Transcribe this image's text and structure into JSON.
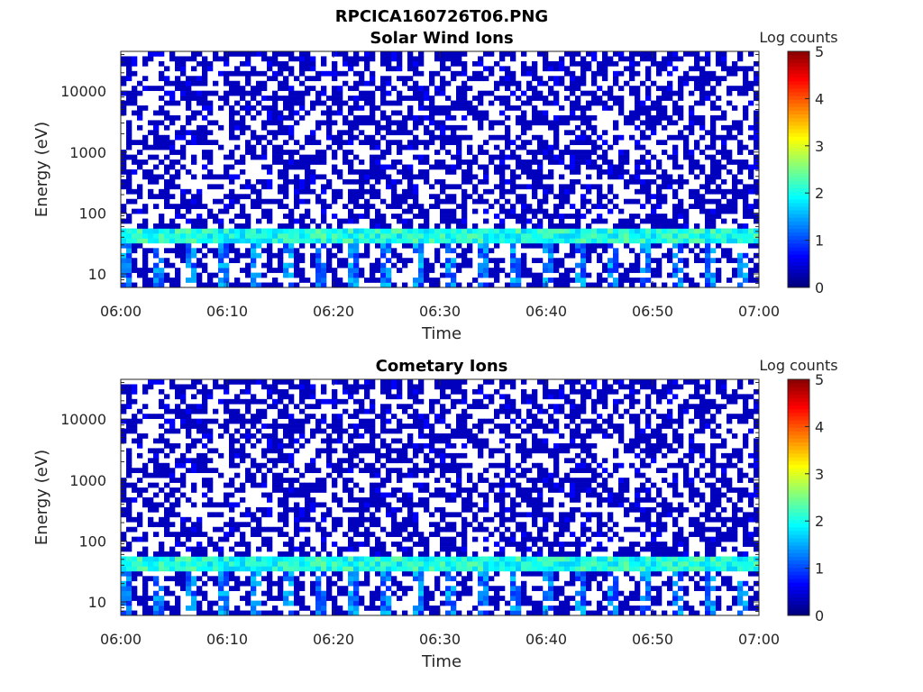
{
  "figure": {
    "title": "RPCICA160726T06.PNG"
  },
  "chart_data": [
    {
      "type": "heatmap",
      "title": "Solar Wind Ions",
      "xlabel": "Time",
      "ylabel": "Energy (eV)",
      "x_tick_labels": [
        "06:00",
        "06:10",
        "06:20",
        "06:30",
        "06:40",
        "06:50",
        "07:00"
      ],
      "x_range": [
        "06:00",
        "07:00"
      ],
      "y_scale": "log",
      "y_tick_values": [
        10,
        100,
        1000,
        10000
      ],
      "y_tick_labels": [
        "10",
        "100",
        "1000",
        "10000"
      ],
      "y_range": [
        6,
        45000
      ],
      "colorbar": {
        "label": "Log counts",
        "range": [
          0,
          5
        ],
        "tick_labels": [
          "0",
          "1",
          "2",
          "3",
          "4",
          "5"
        ],
        "colormap": "jet"
      },
      "grid": false,
      "description_bands": {
        "background_level": 0.3,
        "main_band_energy_eV": [
          35,
          60
        ],
        "main_band_level": 2.0,
        "low_energy_pulses_eV": [
          6,
          35
        ],
        "low_energy_pulse_level": 1.2
      }
    },
    {
      "type": "heatmap",
      "title": "Cometary Ions",
      "xlabel": "Time",
      "ylabel": "Energy (eV)",
      "x_tick_labels": [
        "06:00",
        "06:10",
        "06:20",
        "06:30",
        "06:40",
        "06:50",
        "07:00"
      ],
      "x_range": [
        "06:00",
        "07:00"
      ],
      "y_scale": "log",
      "y_tick_values": [
        10,
        100,
        1000,
        10000
      ],
      "y_tick_labels": [
        "10",
        "100",
        "1000",
        "10000"
      ],
      "y_range": [
        6,
        45000
      ],
      "colorbar": {
        "label": "Log counts",
        "range": [
          0,
          5
        ],
        "tick_labels": [
          "0",
          "1",
          "2",
          "3",
          "4",
          "5"
        ],
        "colormap": "jet"
      },
      "grid": false,
      "description_bands": {
        "background_level": 0.3,
        "main_band_energy_eV": [
          35,
          60
        ],
        "main_band_level": 2.0,
        "low_energy_pulses_eV": [
          6,
          35
        ],
        "low_energy_pulse_level": 1.2
      }
    }
  ]
}
